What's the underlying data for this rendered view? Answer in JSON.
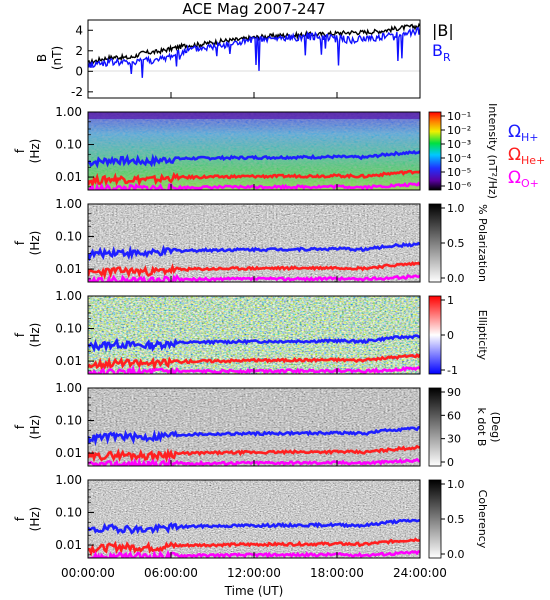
{
  "title": "ACE Mag 2007-247",
  "x_axis": {
    "label": "Time (UT)",
    "ticks": [
      "00:00:00",
      "06:00:00",
      "12:00:00",
      "18:00:00",
      "24:00:00"
    ],
    "hours": [
      0,
      6,
      12,
      18,
      24
    ]
  },
  "legend_top": {
    "b_total": "|B|",
    "b_r": "B",
    "b_r_sub": "R"
  },
  "legend_gyro": [
    {
      "sym": "Ω",
      "sub": "H+",
      "color": "#1f1fff"
    },
    {
      "sym": "Ω",
      "sub": "He+",
      "color": "#ff2020"
    },
    {
      "sym": "Ω",
      "sub": "O+",
      "color": "#ff00ff"
    }
  ],
  "colors": {
    "b_total": "#000000",
    "b_r": "#1010ff",
    "gyro_h": "#1f1fff",
    "gyro_he": "#ff2020",
    "gyro_o": "#ff00ff"
  },
  "panels": [
    {
      "id": "b",
      "ylabel_top": "B",
      "ylabel_bottom": "(nT)",
      "yticks": [
        "4",
        "2",
        "0",
        "-2"
      ]
    },
    {
      "id": "intensity",
      "ylabel_top": "f",
      "ylabel_bottom": "(Hz)",
      "yticks": [
        "1.00",
        "0.10",
        "0.01"
      ],
      "cbar_label": "Intensity (nT²/Hz)",
      "cbar_ticks": [
        "10⁻¹",
        "10⁻²",
        "10⁻³",
        "10⁻⁴",
        "10⁻⁵",
        "10⁻⁶"
      ]
    },
    {
      "id": "polarization",
      "ylabel_top": "f",
      "ylabel_bottom": "(Hz)",
      "yticks": [
        "1.00",
        "0.10",
        "0.01"
      ],
      "cbar_label": "% Polarization",
      "cbar_ticks": [
        "1.0",
        "0.5",
        "0.0"
      ]
    },
    {
      "id": "ellipticity",
      "ylabel_top": "f",
      "ylabel_bottom": "(Hz)",
      "yticks": [
        "1.00",
        "0.10",
        "0.01"
      ],
      "cbar_label": "Ellipticity",
      "cbar_ticks": [
        "1",
        "0",
        "-1"
      ]
    },
    {
      "id": "kdotb",
      "ylabel_top": "f",
      "ylabel_bottom": "(Hz)",
      "yticks": [
        "1.00",
        "0.10",
        "0.01"
      ],
      "cbar_label": "k dot B",
      "cbar_label2": "(Deg)",
      "cbar_ticks": [
        "90",
        "60",
        "30",
        "0"
      ]
    },
    {
      "id": "coherency",
      "ylabel_top": "f",
      "ylabel_bottom": "(Hz)",
      "yticks": [
        "1.00",
        "0.10",
        "0.01"
      ],
      "cbar_label": "Coherency",
      "cbar_ticks": [
        "1.0",
        "0.5",
        "0.0"
      ]
    }
  ],
  "chart_data": {
    "type": "line",
    "title": "ACE Mag 2007-247",
    "xlabel": "Time (UT)",
    "xlim_hours": [
      0,
      24
    ],
    "b_panel": {
      "ylabel": "B (nT)",
      "ylim": [
        -2.6,
        5
      ],
      "x_hours": [
        0,
        1,
        2,
        3,
        4,
        5,
        6,
        7,
        8,
        9,
        10,
        11,
        12,
        13,
        14,
        15,
        16,
        17,
        18,
        19,
        20,
        21,
        22,
        23,
        24
      ],
      "series": [
        {
          "name": "|B|",
          "values": [
            0.8,
            1.2,
            1.4,
            1.3,
            1.8,
            1.9,
            2.2,
            2.5,
            2.6,
            2.8,
            3.0,
            3.1,
            3.3,
            3.4,
            3.5,
            3.5,
            3.6,
            3.6,
            3.7,
            3.8,
            3.8,
            3.9,
            4.1,
            4.3,
            4.4
          ]
        },
        {
          "name": "B_R",
          "values": [
            0.6,
            0.8,
            0.9,
            0.8,
            1.2,
            1.0,
            1.5,
            2.0,
            2.2,
            2.4,
            2.6,
            2.8,
            3.0,
            3.1,
            3.2,
            3.3,
            3.4,
            3.4,
            3.3,
            3.0,
            3.2,
            3.3,
            3.5,
            3.8,
            3.9
          ]
        }
      ]
    },
    "frequency_panels": {
      "ylabel": "f (Hz)",
      "ylim": [
        0.004,
        1.0
      ],
      "x_hours": [
        0,
        2,
        4,
        5,
        6,
        8,
        12,
        16,
        18,
        20,
        22,
        24
      ],
      "series": [
        {
          "name": "H+",
          "values": [
            0.028,
            0.034,
            0.03,
            0.032,
            0.036,
            0.038,
            0.04,
            0.041,
            0.042,
            0.04,
            0.052,
            0.058
          ]
        },
        {
          "name": "He+",
          "values": [
            0.0075,
            0.009,
            0.0085,
            0.0085,
            0.0095,
            0.01,
            0.0105,
            0.0108,
            0.011,
            0.0105,
            0.013,
            0.015
          ]
        },
        {
          "name": "O+",
          "values": [
            0.0042,
            0.0045,
            0.0045,
            0.0046,
            0.0047,
            0.0048,
            0.005,
            0.005,
            0.0051,
            0.0049,
            0.0054,
            0.006
          ]
        }
      ]
    },
    "colorbar_ranges": {
      "intensity": [
        1e-06,
        0.1
      ],
      "polarization": [
        0,
        1
      ],
      "ellipticity": [
        -1,
        1
      ],
      "kdotb": [
        0,
        90
      ],
      "coherency": [
        0,
        1
      ]
    }
  }
}
